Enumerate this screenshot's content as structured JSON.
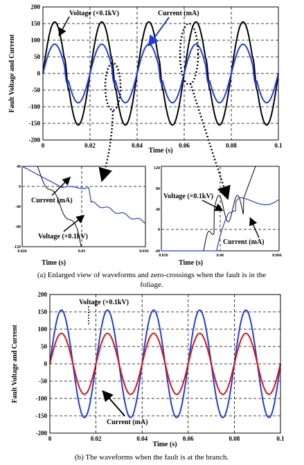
{
  "chart_data": [
    {
      "id": "a-main",
      "type": "line",
      "xlabel": "Time (s)",
      "ylabel": "Fault Voltage and Current",
      "xlim": [
        0,
        0.1
      ],
      "ylim": [
        -200,
        200
      ],
      "xticks": [
        0,
        0.02,
        0.04,
        0.06,
        0.08,
        0.1
      ],
      "xtick_labels": [
        "0",
        "0.02",
        "0.04",
        "0.06",
        "0.08",
        "0.1"
      ],
      "yticks": [
        -200,
        -150,
        -100,
        -50,
        0,
        50,
        100,
        150,
        200
      ],
      "grid": "dashed",
      "series": [
        {
          "name": "Voltage (×0.1kV)",
          "color": "#000000",
          "amplitude": 155,
          "frequency_hz": 50
        },
        {
          "name": "Current (mA)",
          "color": "#1f3fd6",
          "amplitude": 88,
          "frequency_hz": 50
        }
      ],
      "annotations": [
        "Voltage (×0.1kV)",
        "Current (mA)"
      ]
    },
    {
      "id": "a-zoom-left",
      "type": "line",
      "xlabel": "Time (s)",
      "xlim": [
        0.026,
        0.036
      ],
      "ylim": [
        -120,
        40
      ],
      "xtick_labels": [
        "0.026",
        "0.03",
        "0.036"
      ],
      "ytick_labels": [
        "40",
        "0",
        "-40",
        "-80",
        "-120"
      ],
      "annotations": [
        "Current (mA)",
        "Voltage (×0.1kV)"
      ]
    },
    {
      "id": "a-zoom-right",
      "type": "line",
      "xlabel": "Time (s)",
      "xlim": [
        0.056,
        0.066
      ],
      "ylim": [
        -40,
        120
      ],
      "xtick_labels": [
        "0.056",
        "0.06",
        "0.066"
      ],
      "ytick_labels": [
        "120",
        "80",
        "40",
        "0",
        "-40"
      ],
      "annotations": [
        "Voltage (×0.1kV)",
        "Current (mA)"
      ]
    },
    {
      "id": "b-main",
      "type": "line",
      "xlabel": "Time (s)",
      "ylabel": "Fault Voltage and Current",
      "xlim": [
        0,
        0.1
      ],
      "ylim": [
        -200,
        200
      ],
      "xticks": [
        0,
        0.02,
        0.04,
        0.06,
        0.08,
        0.1
      ],
      "xtick_labels": [
        "0",
        "0.02",
        "0.04",
        "0.06",
        "0.08",
        "0.1"
      ],
      "yticks": [
        -200,
        -150,
        -100,
        -50,
        0,
        50,
        100,
        150,
        200
      ],
      "grid": "dashed",
      "series": [
        {
          "name": "Voltage (×0.1kV)",
          "color": "#1f3fd6",
          "amplitude": 155,
          "frequency_hz": 50
        },
        {
          "name": "Current (mA)",
          "color": "#e01010",
          "amplitude": 88,
          "frequency_hz": 50
        }
      ],
      "annotations": [
        "Voltage (×0.1kV)",
        "Current (mA)"
      ]
    }
  ],
  "captions": {
    "a": "(a) Enlarged view of waveforms and zero-crossings when the fault is in the foliage.",
    "a_line1": "(a) Enlarged view of waveforms and zero-crossings when the fault is in the",
    "a_line2": "foliage.",
    "b": "(b) The waveforms when the fault is at the branch."
  }
}
